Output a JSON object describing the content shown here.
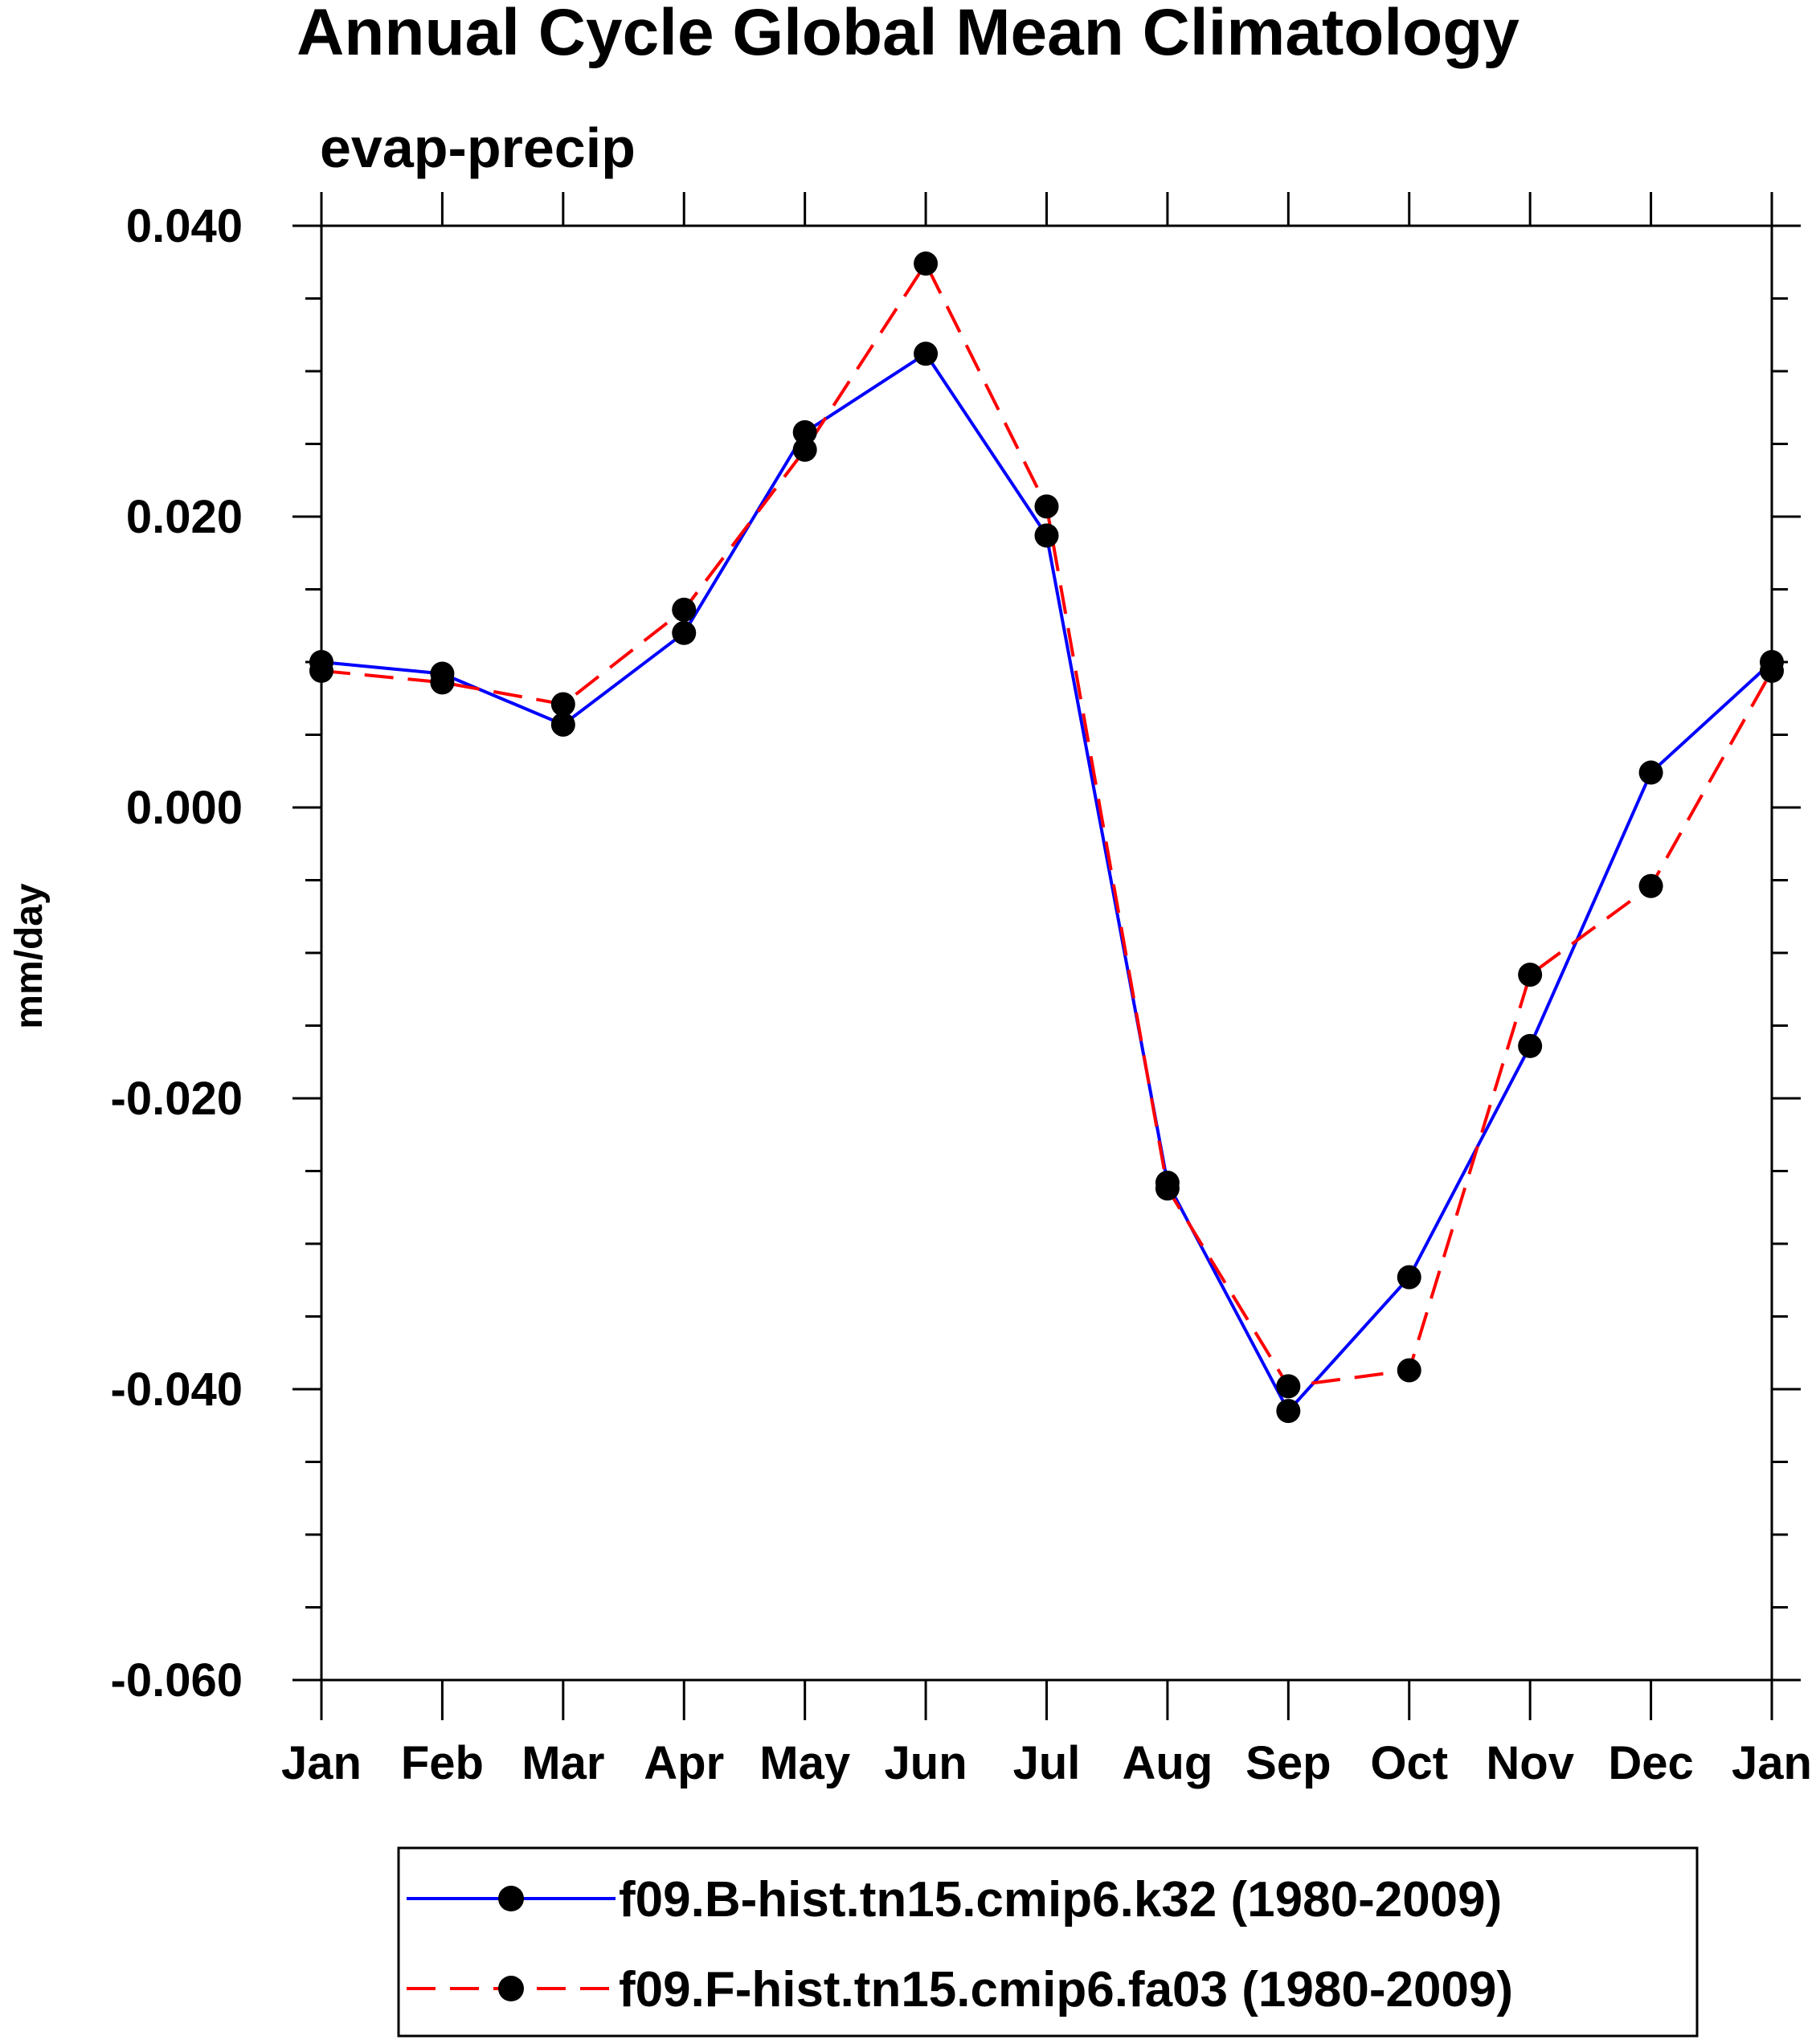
{
  "chart_data": {
    "type": "line",
    "title": "Annual Cycle Global Mean Climatology",
    "subtitle": "evap-precip",
    "xlabel": "",
    "ylabel": "mm/day",
    "categories": [
      "Jan",
      "Feb",
      "Mar",
      "Apr",
      "May",
      "Jun",
      "Jul",
      "Aug",
      "Sep",
      "Oct",
      "Nov",
      "Dec",
      "Jan"
    ],
    "ylim": [
      -0.06,
      0.04
    ],
    "yticks": [
      0.04,
      0.02,
      0.0,
      -0.02,
      -0.04,
      -0.06
    ],
    "ytick_labels": [
      "0.040",
      "0.020",
      "0.000",
      "-0.020",
      "-0.040",
      "-0.060"
    ],
    "series": [
      {
        "name": "f09.B-hist.tn15.cmip6.k32 (1980-2009)",
        "color": "#0000ff",
        "style": "solid",
        "marker": "filled-circle",
        "values": [
          0.01,
          0.0092,
          0.0057,
          0.012,
          0.0258,
          0.0312,
          0.0187,
          -0.0258,
          -0.0415,
          -0.0323,
          -0.0164,
          0.0024,
          0.01
        ]
      },
      {
        "name": "f09.F-hist.tn15.cmip6.fa03 (1980-2009)",
        "color": "#ff0000",
        "style": "dashed",
        "marker": "filled-circle",
        "values": [
          0.0094,
          0.0086,
          0.0071,
          0.0136,
          0.0246,
          0.0374,
          0.0207,
          -0.0262,
          -0.0398,
          -0.0387,
          -0.0115,
          -0.0054,
          0.0094
        ]
      }
    ],
    "legend_position": "bottom-center",
    "grid": false
  }
}
